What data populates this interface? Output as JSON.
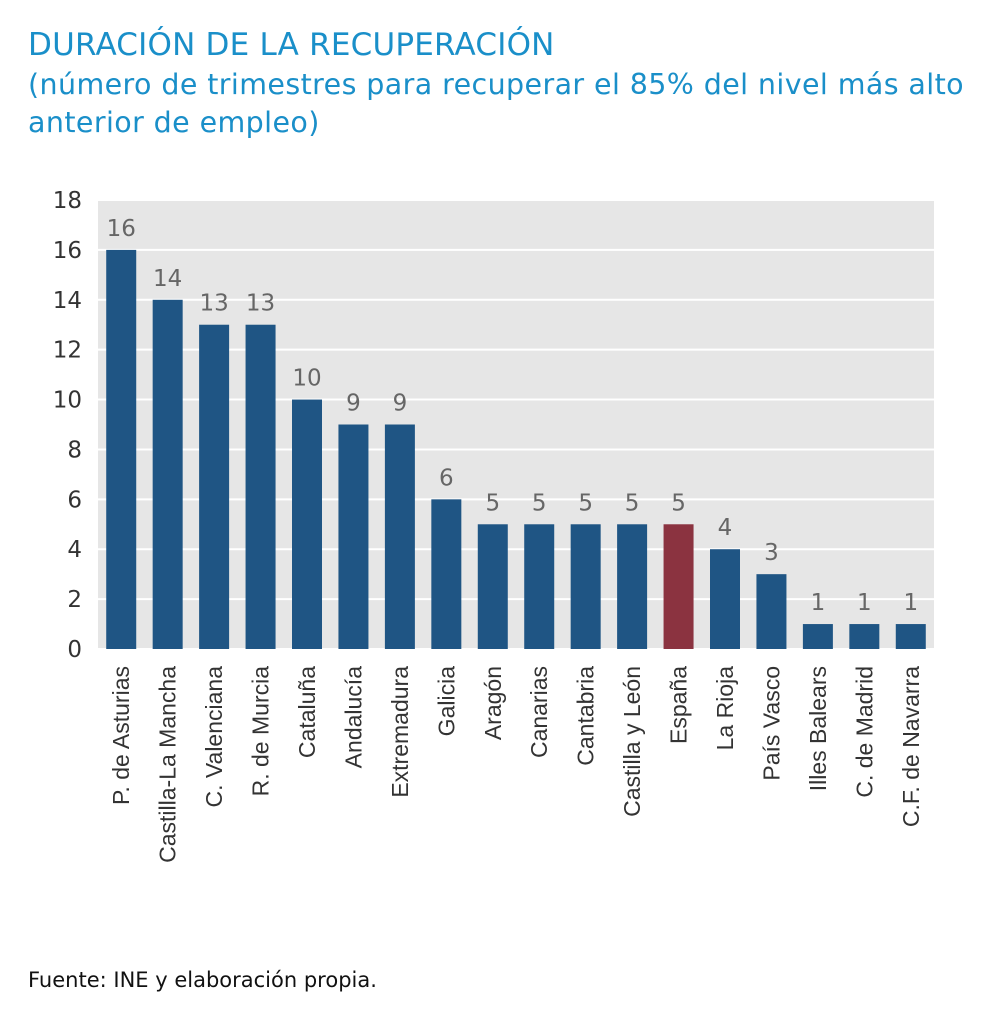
{
  "title": "DURACIÓN DE LA RECUPERACIÓN",
  "subtitle": "(número de trimestres para recuperar el 85% del nivel más alto anterior de empleo)",
  "source": "Fuente: INE y elaboración propia.",
  "colors": {
    "bar": "#1f5584",
    "highlight": "#8b3340",
    "title": "#1a8fc9",
    "plot_bg": "#e6e6e6",
    "grid": "#ffffff",
    "axis_text": "#333333",
    "label_text": "#666666"
  },
  "chart_data": {
    "type": "bar",
    "categories": [
      "P. de Asturias",
      "Castilla-La Mancha",
      "C. Valenciana",
      "R. de Murcia",
      "Cataluña",
      "Andalucía",
      "Extremadura",
      "Galicia",
      "Aragón",
      "Canarias",
      "Cantabria",
      "Castilla y León",
      "España",
      "La Rioja",
      "País Vasco",
      "Illes Balears",
      "C. de Madrid",
      "C.F. de Navarra"
    ],
    "values": [
      16,
      14,
      13,
      13,
      10,
      9,
      9,
      6,
      5,
      5,
      5,
      5,
      5,
      4,
      3,
      1,
      1,
      1
    ],
    "highlight_category": "España",
    "ylim": [
      0,
      18
    ],
    "yticks": [
      0,
      2,
      4,
      6,
      8,
      10,
      12,
      14,
      16,
      18
    ],
    "grid": true,
    "data_labels": true,
    "xlabel": "",
    "ylabel": ""
  }
}
